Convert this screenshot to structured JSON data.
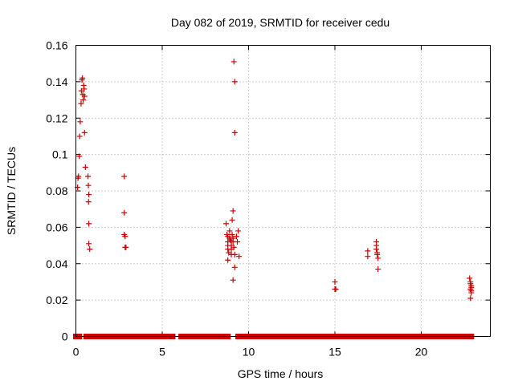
{
  "chart_data": {
    "type": "scatter",
    "title": "Day 082 of 2019, SRMTID for receiver cedu",
    "xlabel": "GPS time / hours",
    "ylabel": "SRMTID / TECUs",
    "xlim": [
      0,
      24
    ],
    "ylim": [
      0,
      0.16
    ],
    "xticks": [
      0,
      5,
      10,
      15,
      20
    ],
    "xtick_labels": [
      "0",
      "5",
      "10",
      "15",
      "20"
    ],
    "yticks": [
      0,
      0.02,
      0.04,
      0.06,
      0.08,
      0.1,
      0.12,
      0.14,
      0.16
    ],
    "ytick_labels": [
      "0",
      "0.02",
      "0.04",
      "0.06",
      "0.08",
      "0.1",
      "0.12",
      "0.14",
      "0.16"
    ],
    "grid": true,
    "marker": "plus",
    "color": "#cc0000",
    "series": [
      {
        "points": [
          [
            0.1,
            0.082
          ],
          [
            0.12,
            0.087
          ],
          [
            0.15,
            0.088
          ],
          [
            0.2,
            0.099
          ],
          [
            0.22,
            0.11
          ],
          [
            0.25,
            0.118
          ],
          [
            0.3,
            0.128
          ],
          [
            0.32,
            0.135
          ],
          [
            0.35,
            0.141
          ],
          [
            0.38,
            0.142
          ],
          [
            0.4,
            0.133
          ],
          [
            0.42,
            0.13
          ],
          [
            0.45,
            0.138
          ],
          [
            0.48,
            0.136
          ],
          [
            0.5,
            0.132
          ],
          [
            0.5,
            0.112
          ],
          [
            0.55,
            0.093
          ],
          [
            0.7,
            0.088
          ],
          [
            0.72,
            0.083
          ],
          [
            0.75,
            0.078
          ],
          [
            0.73,
            0.074
          ],
          [
            0.75,
            0.062
          ],
          [
            0.75,
            0.051
          ],
          [
            0.8,
            0.048
          ],
          [
            2.8,
            0.088
          ],
          [
            2.8,
            0.068
          ],
          [
            2.8,
            0.056
          ],
          [
            2.85,
            0.055
          ],
          [
            2.85,
            0.049
          ],
          [
            2.9,
            0.049
          ],
          [
            8.7,
            0.062
          ],
          [
            8.75,
            0.056
          ],
          [
            8.8,
            0.055
          ],
          [
            8.8,
            0.052
          ],
          [
            8.8,
            0.05
          ],
          [
            8.8,
            0.048
          ],
          [
            8.85,
            0.046
          ],
          [
            8.8,
            0.042
          ],
          [
            8.9,
            0.058
          ],
          [
            8.9,
            0.054
          ],
          [
            8.95,
            0.053
          ],
          [
            9.0,
            0.052
          ],
          [
            9.0,
            0.05
          ],
          [
            9.0,
            0.048
          ],
          [
            9.0,
            0.045
          ],
          [
            9.05,
            0.064
          ],
          [
            9.05,
            0.056
          ],
          [
            9.1,
            0.069
          ],
          [
            9.1,
            0.054
          ],
          [
            9.1,
            0.052
          ],
          [
            9.1,
            0.031
          ],
          [
            9.15,
            0.151
          ],
          [
            9.2,
            0.14
          ],
          [
            9.2,
            0.112
          ],
          [
            9.15,
            0.049
          ],
          [
            9.2,
            0.045
          ],
          [
            9.2,
            0.038
          ],
          [
            9.3,
            0.055
          ],
          [
            9.35,
            0.052
          ],
          [
            9.4,
            0.058
          ],
          [
            9.45,
            0.044
          ],
          [
            15.0,
            0.03
          ],
          [
            15.0,
            0.026
          ],
          [
            15.05,
            0.026
          ],
          [
            16.9,
            0.047
          ],
          [
            16.9,
            0.044
          ],
          [
            17.4,
            0.052
          ],
          [
            17.4,
            0.05
          ],
          [
            17.4,
            0.048
          ],
          [
            17.45,
            0.046
          ],
          [
            17.45,
            0.045
          ],
          [
            17.5,
            0.043
          ],
          [
            17.5,
            0.037
          ],
          [
            22.8,
            0.032
          ],
          [
            22.85,
            0.03
          ],
          [
            22.85,
            0.029
          ],
          [
            22.9,
            0.028
          ],
          [
            22.9,
            0.027
          ],
          [
            22.85,
            0.026
          ],
          [
            22.9,
            0.025
          ],
          [
            22.9,
            0.024
          ],
          [
            22.85,
            0.021
          ]
        ],
        "zero_segments": [
          [
            0.0,
            0.2
          ],
          [
            0.6,
            0.7
          ],
          [
            0.9,
            5.6
          ],
          [
            6.1,
            8.8
          ],
          [
            9.4,
            22.9
          ]
        ]
      }
    ]
  }
}
